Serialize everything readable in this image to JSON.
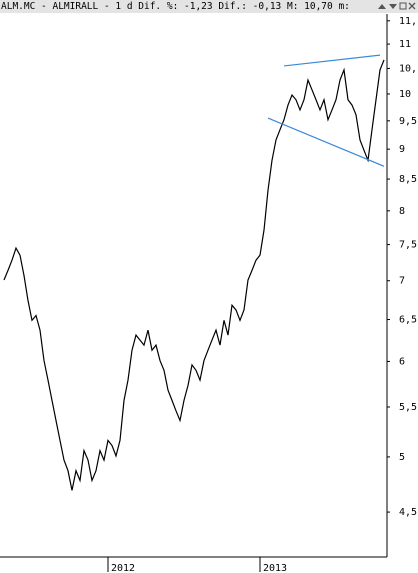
{
  "chart_data": {
    "type": "line",
    "title": "ALM.MC - ALMIRALL -  1 d Dif. %: -1,23 Dif.: -0,13 M: 10,70 m:",
    "log_scale": true,
    "categories": [
      null,
      null,
      null,
      null,
      null,
      null,
      null,
      null,
      null,
      null,
      null,
      null,
      null,
      null,
      null,
      null,
      null,
      null,
      null,
      null,
      null,
      null,
      null,
      null,
      null,
      null,
      "2012",
      null,
      null,
      null,
      null,
      null,
      null,
      null,
      null,
      null,
      null,
      null,
      null,
      null,
      null,
      null,
      null,
      null,
      null,
      null,
      null,
      null,
      null,
      null,
      null,
      null,
      null,
      null,
      null,
      null,
      null,
      null,
      null,
      null,
      null,
      null,
      null,
      null,
      "2013",
      null,
      null,
      null,
      null,
      null,
      null,
      null,
      null,
      null,
      null,
      null,
      null,
      null,
      null,
      null,
      null,
      null,
      null,
      null,
      null,
      null,
      null,
      null,
      null,
      null,
      null,
      null,
      null,
      null,
      null,
      null
    ],
    "series": [
      {
        "name": "ALM.MC",
        "color": "#000000",
        "values": [
          7.01,
          7.14,
          7.28,
          7.45,
          7.35,
          7.07,
          6.74,
          6.49,
          6.55,
          6.37,
          6.01,
          5.79,
          5.57,
          5.36,
          5.16,
          4.97,
          4.87,
          4.69,
          4.87,
          4.78,
          5.06,
          4.97,
          4.78,
          4.87,
          5.06,
          4.97,
          5.16,
          5.11,
          5.01,
          5.16,
          5.57,
          5.79,
          6.13,
          6.31,
          6.25,
          6.19,
          6.37,
          6.13,
          6.19,
          6.01,
          5.9,
          5.68,
          5.57,
          5.46,
          5.36,
          5.57,
          5.73,
          5.96,
          5.9,
          5.79,
          6.01,
          6.13,
          6.25,
          6.37,
          6.19,
          6.49,
          6.31,
          6.68,
          6.62,
          6.49,
          6.62,
          7.01,
          7.14,
          7.28,
          7.35,
          7.71,
          8.32,
          8.81,
          9.16,
          9.34,
          9.52,
          9.79,
          9.98,
          9.89,
          9.7,
          9.89,
          10.27,
          10.08,
          9.89,
          9.7,
          9.89,
          9.52,
          9.7,
          9.89,
          10.27,
          10.47,
          9.89,
          9.79,
          9.61,
          9.16,
          8.98,
          8.81,
          9.34,
          9.89,
          10.47,
          10.67
        ]
      }
    ],
    "trendlines": [
      {
        "color": "#3a8ad8",
        "start": [
          70,
          10.55
        ],
        "end": [
          94,
          10.77
        ]
      },
      {
        "color": "#3a8ad8",
        "start": [
          66,
          9.55
        ],
        "end": [
          95,
          8.71
        ]
      }
    ],
    "ylim": [
      4.13,
      11.65
    ],
    "yticks": [
      {
        "value": 11.5,
        "label": "11,"
      },
      11,
      {
        "value": 10.5,
        "label": "10,"
      },
      10,
      {
        "value": 9.5,
        "label": "9,5"
      },
      9,
      {
        "value": 8.5,
        "label": "8,5"
      },
      8,
      {
        "value": 7.5,
        "label": "7,5"
      },
      7,
      {
        "value": 6.5,
        "label": "6,5"
      },
      6,
      {
        "value": 5.5,
        "label": "5,5"
      },
      5,
      {
        "value": 4.5,
        "label": "4,5"
      }
    ]
  }
}
